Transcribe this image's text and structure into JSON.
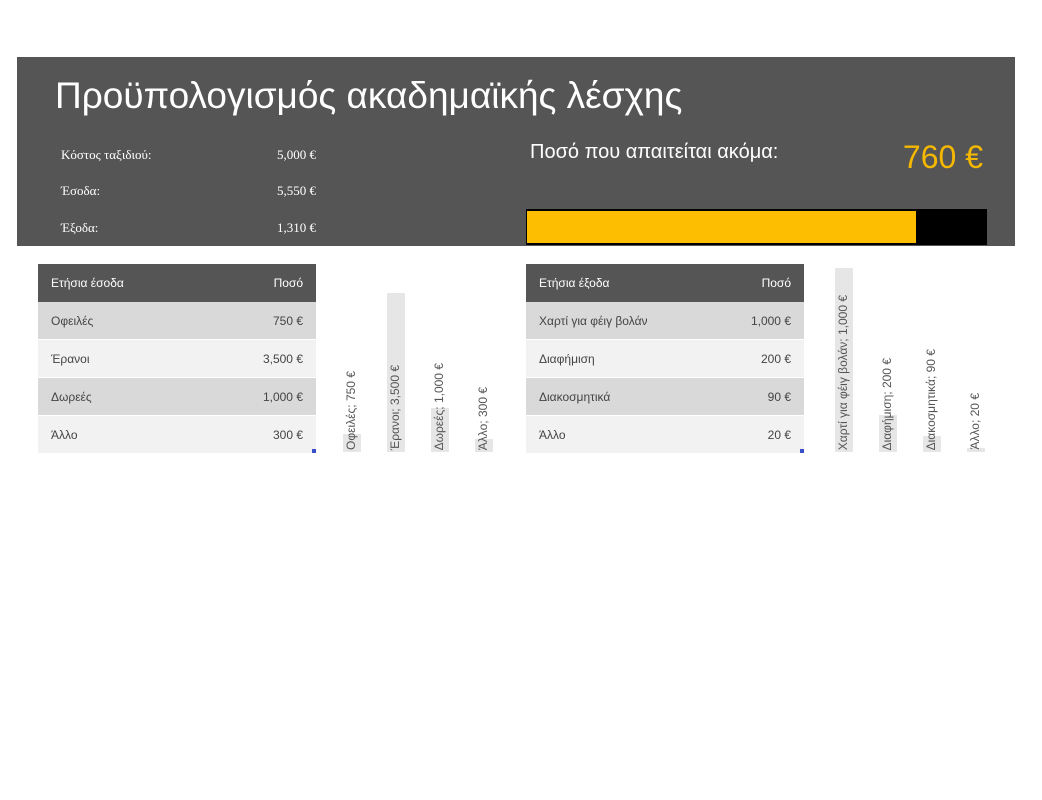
{
  "title": "Προϋπολογισμός ακαδημαϊκής λέσχης",
  "summary": {
    "trip_cost_label": "Κόστος ταξιδιού:",
    "trip_cost_value": "5,000 €",
    "income_label": "Έσοδα:",
    "income_value": "5,550 €",
    "expenses_label": "Έξοδα:",
    "expenses_value": "1,310 €"
  },
  "remaining": {
    "label": "Ποσό που απαιτείται ακόμα:",
    "value": "760 €",
    "progress_fraction": 0.848
  },
  "income_table": {
    "header_name": "Ετήσια έσοδα",
    "header_amount": "Ποσό",
    "rows": [
      {
        "name": "Οφειλές",
        "amount": "750 €"
      },
      {
        "name": "Έρανοι",
        "amount": "3,500 €"
      },
      {
        "name": "Δωρεές",
        "amount": "1,000 €"
      },
      {
        "name": "Άλλο",
        "amount": "300 €"
      }
    ]
  },
  "income_chart_labels": [
    "Οφειλές; 750 €",
    "Έρανοι; 3,500 €",
    "Δωρεές; 1,000 €",
    "Άλλο; 300 €"
  ],
  "expense_table": {
    "header_name": "Ετήσια έξοδα",
    "header_amount": "Ποσό",
    "rows": [
      {
        "name": "Χαρτί για φέιγ βολάν",
        "amount": "1,000 €"
      },
      {
        "name": "Διαφήμιση",
        "amount": "200 €"
      },
      {
        "name": "Διακοσμητικά",
        "amount": "90 €"
      },
      {
        "name": "Άλλο",
        "amount": "20 €"
      }
    ]
  },
  "expense_chart_labels": [
    "Χαρτί για φέιγ βολάν; 1,000 €",
    "Διαφήμιση; 200 €",
    "Διακοσμητικά; 90 €",
    "Άλλο; 20 €"
  ],
  "colors": {
    "header_bg": "#555555",
    "accent": "#fdbd00",
    "progress_track": "#000000"
  }
}
